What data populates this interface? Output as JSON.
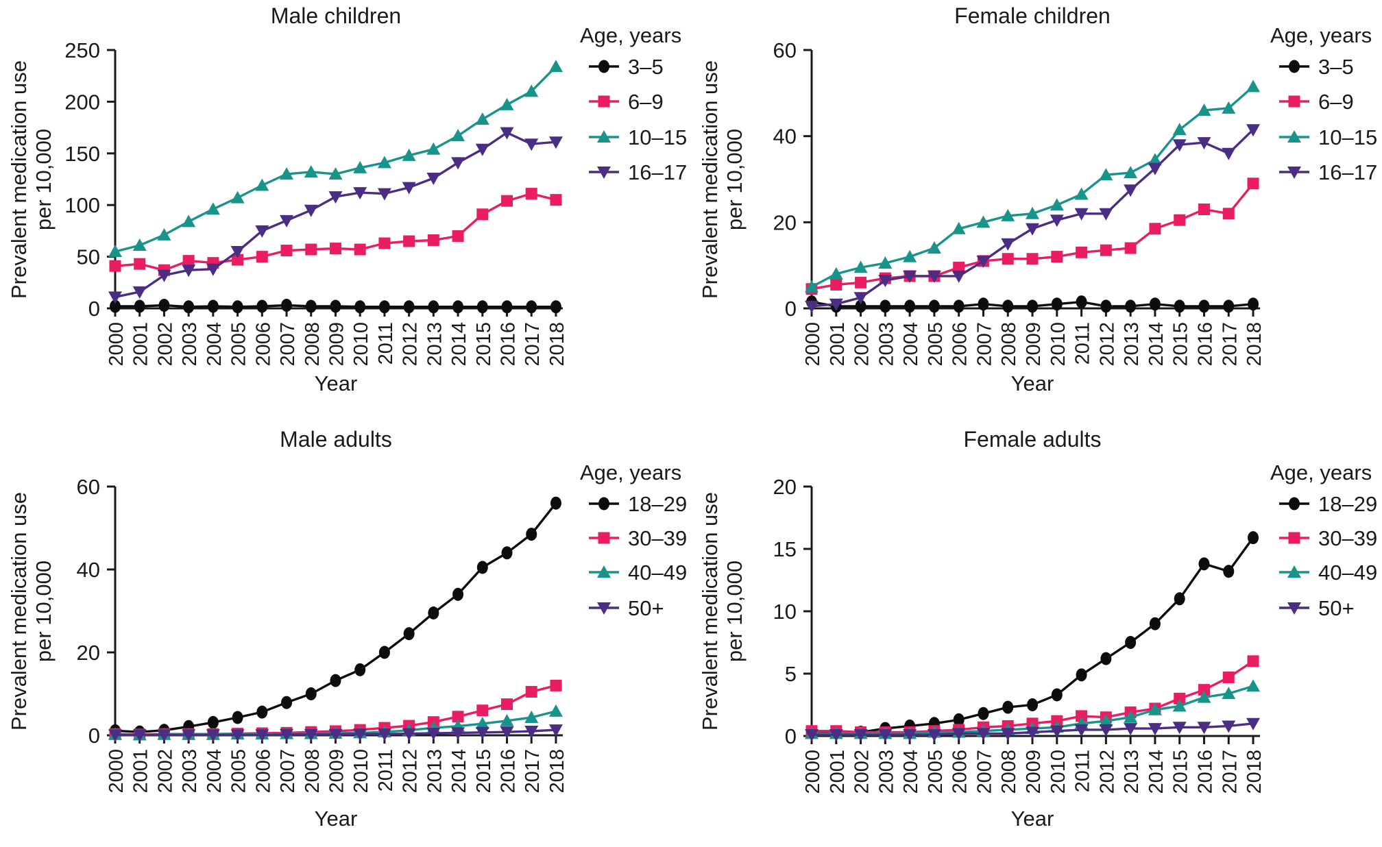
{
  "figure": {
    "background": "#ffffff"
  },
  "colors": {
    "series_black": "#0d0d0d",
    "series_pink": "#EA1D63",
    "series_teal": "#19948A",
    "series_purple": "#4B2D84",
    "axis": "#1a1a1a"
  },
  "years": [
    "2000",
    "2001",
    "2002",
    "2003",
    "2004",
    "2005",
    "2006",
    "2007",
    "2008",
    "2009",
    "2010",
    "2011",
    "2012",
    "2013",
    "2014",
    "2015",
    "2016",
    "2017",
    "2018"
  ],
  "chart_data": [
    {
      "type": "line",
      "title": "Male children",
      "xlabel": "Year",
      "ylabel_line1": "Prevalent medication use",
      "ylabel_line2": "per 10,000",
      "legend_title": "Age, years",
      "legend_position": "right",
      "grid": false,
      "ylim": [
        0,
        250
      ],
      "yticks": [
        "0",
        "50",
        "100",
        "150",
        "200",
        "250"
      ],
      "series": [
        {
          "name": "3–5",
          "marker": "circle",
          "color": "black",
          "values": [
            2,
            2,
            3,
            1.5,
            2,
            1.5,
            2,
            3,
            2,
            2,
            1.5,
            1.5,
            1.5,
            1.5,
            1.5,
            1.5,
            1.5,
            1.5,
            1.5
          ]
        },
        {
          "name": "6–9",
          "marker": "square",
          "color": "pink",
          "values": [
            41,
            43,
            37,
            46,
            44,
            47,
            50,
            56,
            57,
            58,
            57,
            63,
            65,
            66,
            70,
            91,
            104,
            111,
            105
          ]
        },
        {
          "name": "10–15",
          "marker": "triangle-up",
          "color": "teal",
          "values": [
            55,
            61,
            71,
            84,
            96,
            107,
            119,
            130,
            132,
            130,
            136,
            141,
            148,
            154,
            167,
            183,
            197,
            210,
            234
          ]
        },
        {
          "name": "16–17",
          "marker": "triangle-down",
          "color": "purple",
          "values": [
            11,
            16,
            32,
            37,
            38,
            55,
            75,
            85,
            95,
            108,
            112,
            111,
            117,
            126,
            141,
            154,
            170,
            159,
            161
          ]
        }
      ]
    },
    {
      "type": "line",
      "title": "Female children",
      "xlabel": "Year",
      "ylabel_line1": "Prevalent medication use",
      "ylabel_line2": "per 10,000",
      "legend_title": "Age, years",
      "legend_position": "right",
      "grid": false,
      "ylim": [
        0,
        60
      ],
      "yticks": [
        "0",
        "20",
        "40",
        "60"
      ],
      "series": [
        {
          "name": "3–5",
          "marker": "circle",
          "color": "black",
          "values": [
            1.5,
            0.5,
            0.5,
            0.5,
            0.5,
            0.5,
            0.5,
            1,
            0.5,
            0.5,
            1,
            1.5,
            0.5,
            0.5,
            1,
            0.5,
            0.5,
            0.5,
            1
          ]
        },
        {
          "name": "6–9",
          "marker": "square",
          "color": "pink",
          "values": [
            4.5,
            5.5,
            6,
            7,
            7.5,
            7.5,
            9.5,
            11,
            11.5,
            11.5,
            12,
            13,
            13.5,
            14,
            18.5,
            20.5,
            23,
            22,
            29
          ]
        },
        {
          "name": "10–15",
          "marker": "triangle-up",
          "color": "teal",
          "values": [
            5,
            8,
            9.5,
            10.5,
            12,
            14,
            18.5,
            20,
            21.5,
            22,
            24,
            26.5,
            31,
            31.5,
            34.5,
            41.5,
            46,
            46.5,
            51.5
          ]
        },
        {
          "name": "16–17",
          "marker": "triangle-down",
          "color": "purple",
          "values": [
            0.5,
            1,
            2.5,
            6.5,
            7.5,
            7.5,
            7.5,
            11,
            15,
            18.5,
            20.5,
            22,
            22,
            27.5,
            32.5,
            38,
            38.5,
            36,
            41.5
          ]
        }
      ]
    },
    {
      "type": "line",
      "title": "Male adults",
      "xlabel": "Year",
      "ylabel_line1": "Prevalent medication use",
      "ylabel_line2": "per 10,000",
      "legend_title": "Age, years",
      "legend_position": "right",
      "grid": false,
      "ylim": [
        0,
        60
      ],
      "yticks": [
        "0",
        "20",
        "40",
        "60"
      ],
      "series": [
        {
          "name": "18–29",
          "marker": "circle",
          "color": "black",
          "values": [
            1.1,
            0.8,
            1.2,
            2.1,
            3.1,
            4.3,
            5.6,
            7.9,
            10,
            13.2,
            15.8,
            20,
            24.5,
            29.5,
            34,
            40.5,
            44,
            48.5,
            56
          ]
        },
        {
          "name": "30–39",
          "marker": "square",
          "color": "pink",
          "values": [
            0.3,
            0.2,
            0.3,
            0.3,
            0.3,
            0.4,
            0.5,
            0.6,
            0.8,
            1,
            1.3,
            1.8,
            2.3,
            3.2,
            4.5,
            6,
            7.5,
            10.5,
            12
          ]
        },
        {
          "name": "40–49",
          "marker": "triangle-up",
          "color": "teal",
          "values": [
            0.2,
            0.1,
            0.2,
            0.2,
            0.2,
            0.3,
            0.3,
            0.4,
            0.4,
            0.5,
            0.6,
            0.8,
            1.2,
            1.8,
            2.2,
            2.8,
            3.5,
            4.3,
            5.8
          ]
        },
        {
          "name": "50+",
          "marker": "triangle-down",
          "color": "purple",
          "values": [
            0.1,
            0.1,
            0.1,
            0.1,
            0.1,
            0.1,
            0.1,
            0.2,
            0.2,
            0.2,
            0.3,
            0.3,
            0.4,
            0.5,
            0.6,
            0.7,
            0.8,
            1,
            1.3
          ]
        }
      ]
    },
    {
      "type": "line",
      "title": "Female adults",
      "xlabel": "Year",
      "ylabel_line1": "Prevalent medication use",
      "ylabel_line2": "per 10,000",
      "legend_title": "Age, years",
      "legend_position": "right",
      "grid": false,
      "ylim": [
        0,
        20
      ],
      "yticks": [
        "0",
        "5",
        "10",
        "15",
        "20"
      ],
      "series": [
        {
          "name": "18–29",
          "marker": "circle",
          "color": "black",
          "values": [
            0.3,
            0.3,
            0.3,
            0.6,
            0.8,
            1,
            1.3,
            1.8,
            2.3,
            2.5,
            3.3,
            4.9,
            6.2,
            7.5,
            9,
            11,
            13.8,
            13.2,
            15.9
          ]
        },
        {
          "name": "30–39",
          "marker": "square",
          "color": "pink",
          "values": [
            0.4,
            0.4,
            0.3,
            0.3,
            0.3,
            0.4,
            0.5,
            0.7,
            0.8,
            1,
            1.2,
            1.6,
            1.5,
            1.9,
            2.2,
            3,
            3.7,
            4.7,
            6
          ]
        },
        {
          "name": "40–49",
          "marker": "triangle-up",
          "color": "teal",
          "values": [
            0.2,
            0.2,
            0.2,
            0.2,
            0.2,
            0.3,
            0.3,
            0.4,
            0.5,
            0.6,
            0.7,
            1,
            1.2,
            1.5,
            2.1,
            2.4,
            3.1,
            3.4,
            4
          ]
        },
        {
          "name": "50+",
          "marker": "triangle-down",
          "color": "purple",
          "values": [
            0.1,
            0.1,
            0.1,
            0.1,
            0.1,
            0.1,
            0.2,
            0.2,
            0.2,
            0.3,
            0.4,
            0.5,
            0.5,
            0.6,
            0.6,
            0.7,
            0.7,
            0.8,
            1
          ]
        }
      ]
    }
  ]
}
